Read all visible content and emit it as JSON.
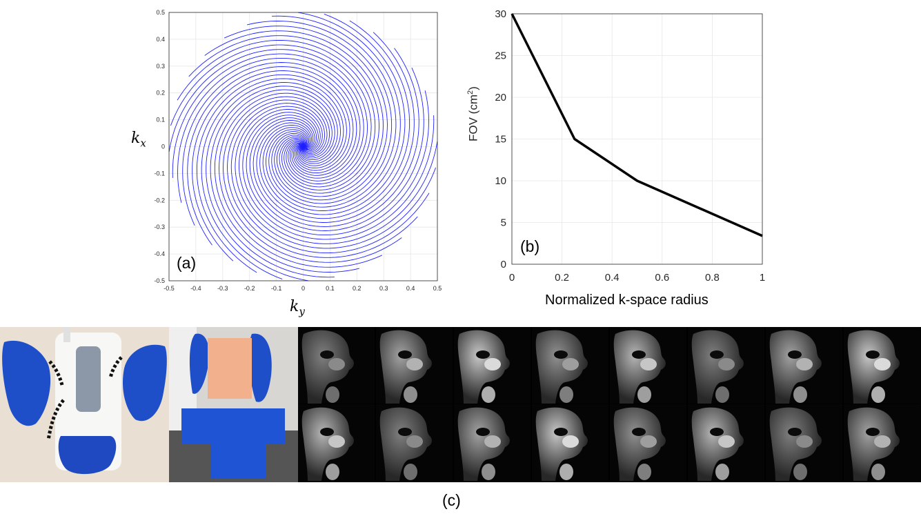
{
  "figure": {
    "panel_a": {
      "label": "(a)",
      "xlabel_base": "k",
      "xlabel_sub": "y",
      "ylabel_base": "k",
      "ylabel_sub": "x",
      "ticks": [
        "-0.5",
        "-0.4",
        "-0.3",
        "-0.2",
        "-0.1",
        "0",
        "0.1",
        "0.2",
        "0.3",
        "0.4",
        "0.5"
      ],
      "y_ticks": [
        "0.5",
        "0.4",
        "0.3",
        "0.2",
        "0.1",
        "0",
        "-0.1",
        "-0.2",
        "-0.3",
        "-0.4",
        "-0.5"
      ],
      "spiral_color": "#1f1fff"
    },
    "panel_b": {
      "label": "(b)",
      "xlabel": "Normalized k-space radius",
      "ylabel_main": "FOV (cm",
      "ylabel_sup": "2",
      "ylabel_end": ")",
      "x_ticks": [
        "0",
        "0.2",
        "0.4",
        "0.6",
        "0.8",
        "1"
      ],
      "y_ticks": [
        "0",
        "5",
        "10",
        "15",
        "20",
        "25",
        "30"
      ]
    },
    "panel_c": {
      "label": "(c)"
    }
  },
  "chart_data": [
    {
      "type": "line",
      "title": "",
      "xlabel": "ky",
      "ylabel": "kx",
      "xlim": [
        -0.5,
        0.5
      ],
      "ylim": [
        -0.5,
        0.5
      ],
      "grid": true,
      "series": [
        {
          "values": "variable-density spiral trajectory, 32 interleaves"
        }
      ]
    },
    {
      "type": "line",
      "title": "",
      "xlabel": "Normalized k-space radius",
      "ylabel": "FOV (cm2)",
      "xlim": [
        0,
        1
      ],
      "ylim": [
        0,
        30
      ],
      "grid": true,
      "series": [
        {
          "x": [
            0,
            0.25,
            0.5,
            1.0
          ],
          "values": [
            30,
            15,
            10,
            3.4
          ]
        }
      ]
    }
  ]
}
